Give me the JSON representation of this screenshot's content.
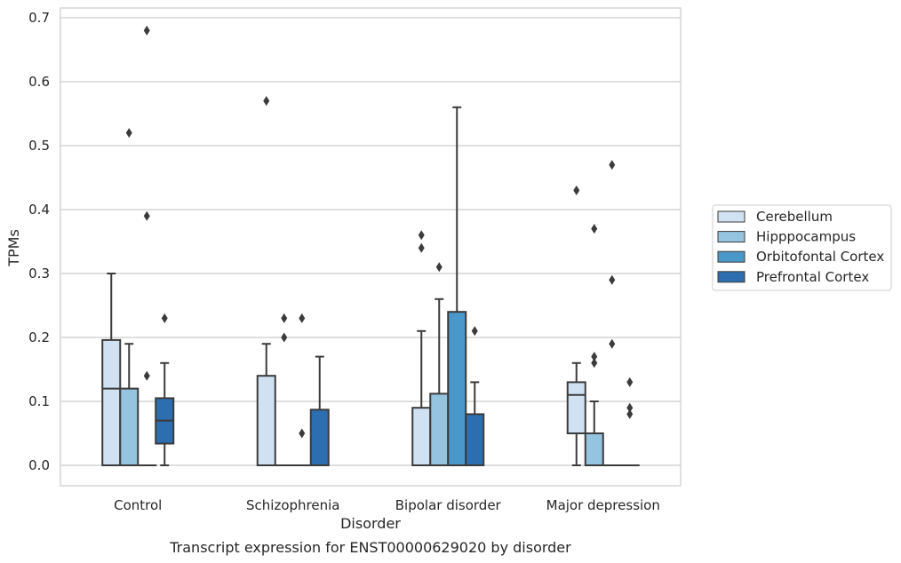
{
  "chart_data": {
    "type": "box",
    "title": "",
    "caption": "Transcript expression for ENST00000629020 by disorder",
    "xlabel": "Disorder",
    "ylabel": "TPMs",
    "ylim": [
      -0.033,
      0.715
    ],
    "yticks": [
      "0.0",
      "0.1",
      "0.2",
      "0.3",
      "0.4",
      "0.5",
      "0.6",
      "0.7"
    ],
    "grid": "horizontal",
    "legend_position": "right",
    "categories": [
      "Control",
      "Schizophrenia",
      "Bipolar disorder",
      "Major depression"
    ],
    "series": [
      {
        "name": "Cerebellum",
        "color": "#d0e1f2",
        "boxes": [
          {
            "q1": 0.0,
            "median": 0.12,
            "q3": 0.196,
            "whisker_low": 0.0,
            "whisker_high": 0.3,
            "outliers": []
          },
          {
            "q1": 0.0,
            "median": 0.0,
            "q3": 0.14,
            "whisker_low": 0.0,
            "whisker_high": 0.19,
            "outliers": [
              0.57
            ]
          },
          {
            "q1": 0.0,
            "median": 0.0,
            "q3": 0.09,
            "whisker_low": 0.0,
            "whisker_high": 0.21,
            "outliers": [
              0.34,
              0.36
            ]
          },
          {
            "q1": 0.05,
            "median": 0.11,
            "q3": 0.13,
            "whisker_low": 0.0,
            "whisker_high": 0.16,
            "outliers": [
              0.43
            ]
          }
        ]
      },
      {
        "name": "Hipppocampus",
        "color": "#94c4df",
        "boxes": [
          {
            "q1": 0.0,
            "median": 0.0,
            "q3": 0.12,
            "whisker_low": 0.0,
            "whisker_high": 0.19,
            "outliers": [
              0.52
            ]
          },
          {
            "q1": 0.0,
            "median": 0.0,
            "q3": 0.0,
            "whisker_low": 0.0,
            "whisker_high": 0.0,
            "outliers": [
              0.2,
              0.23
            ]
          },
          {
            "q1": 0.0,
            "median": 0.0,
            "q3": 0.112,
            "whisker_low": 0.0,
            "whisker_high": 0.26,
            "outliers": [
              0.31
            ]
          },
          {
            "q1": 0.0,
            "median": 0.0,
            "q3": 0.05,
            "whisker_low": 0.0,
            "whisker_high": 0.1,
            "outliers": [
              0.16,
              0.17,
              0.37
            ]
          }
        ]
      },
      {
        "name": "Orbitofontal Cortex",
        "color": "#4a98c9",
        "boxes": [
          {
            "q1": 0.0,
            "median": 0.0,
            "q3": 0.0,
            "whisker_low": 0.0,
            "whisker_high": 0.0,
            "outliers": [
              0.14,
              0.39,
              0.68
            ]
          },
          {
            "q1": 0.0,
            "median": 0.0,
            "q3": 0.0,
            "whisker_low": 0.0,
            "whisker_high": 0.0,
            "outliers": [
              0.05,
              0.23
            ]
          },
          {
            "q1": 0.0,
            "median": 0.0,
            "q3": 0.24,
            "whisker_low": 0.0,
            "whisker_high": 0.56,
            "outliers": []
          },
          {
            "q1": 0.0,
            "median": 0.0,
            "q3": 0.0,
            "whisker_low": 0.0,
            "whisker_high": 0.0,
            "outliers": [
              0.19,
              0.29,
              0.47
            ]
          }
        ]
      },
      {
        "name": "Prefrontal Cortex",
        "color": "#2c6eaf",
        "boxes": [
          {
            "q1": 0.034,
            "median": 0.07,
            "q3": 0.105,
            "whisker_low": 0.0,
            "whisker_high": 0.16,
            "outliers": [
              0.23
            ]
          },
          {
            "q1": 0.0,
            "median": 0.0,
            "q3": 0.087,
            "whisker_low": 0.0,
            "whisker_high": 0.17,
            "outliers": []
          },
          {
            "q1": 0.0,
            "median": 0.0,
            "q3": 0.08,
            "whisker_low": 0.0,
            "whisker_high": 0.13,
            "outliers": [
              0.21
            ]
          },
          {
            "q1": 0.0,
            "median": 0.0,
            "q3": 0.0,
            "whisker_low": 0.0,
            "whisker_high": 0.0,
            "outliers": [
              0.08,
              0.09,
              0.13
            ]
          }
        ]
      }
    ]
  }
}
